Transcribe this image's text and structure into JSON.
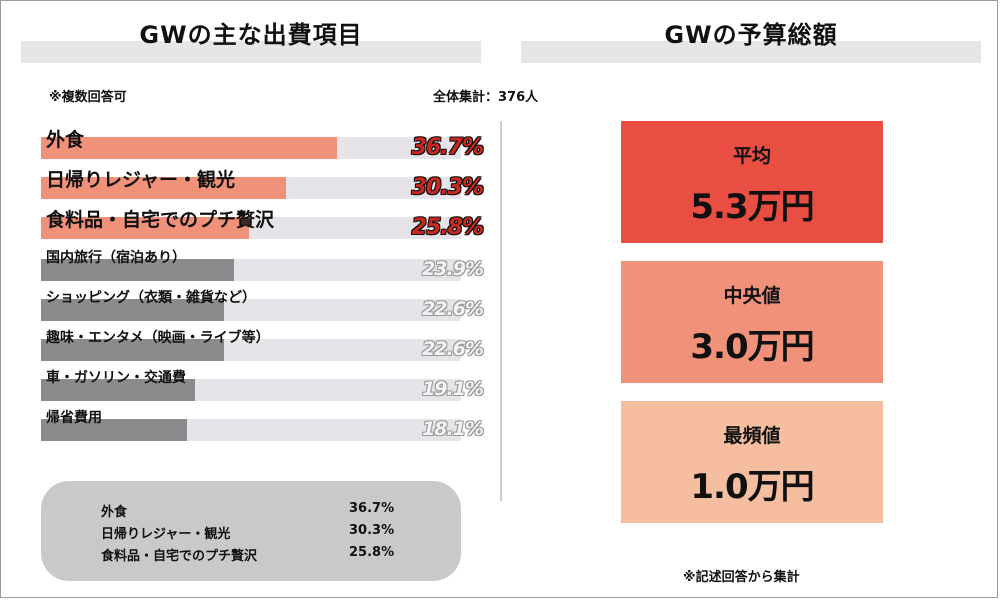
{
  "left_section": {
    "title": "GWの主な出費項目",
    "note": "※複数回答可",
    "total": "全体集計：376人"
  },
  "right_section": {
    "title": "GWの予算総額",
    "note": "※記述回答から集計"
  },
  "chart_data": {
    "type": "bar",
    "title": "GWの主な出費項目",
    "categories": [
      "外食",
      "日帰りレジャー・観光",
      "食料品・自宅でのプチ贅沢",
      "国内旅行（宿泊あり）",
      "ショッピング（衣類・雑貨など）",
      "趣味・エンタメ（映画・ライブ等）",
      "車・ガソリン・交通費",
      "帰省費用"
    ],
    "values": [
      36.7,
      30.3,
      25.8,
      23.9,
      22.6,
      22.6,
      19.1,
      18.1
    ],
    "value_labels": [
      "36.7%",
      "30.3%",
      "25.8%",
      "23.9%",
      "22.6%",
      "22.6%",
      "19.1%",
      "18.1%"
    ],
    "xlim": [
      0,
      52
    ],
    "highlight_count": 3,
    "colors": {
      "highlight": "#f0917a",
      "other": "#8d8a8d",
      "track": "#e6e4e8"
    }
  },
  "summary_table": [
    {
      "label": "外食",
      "value": "36.7%"
    },
    {
      "label": "日帰りレジャー・観光",
      "value": "30.3%"
    },
    {
      "label": "食料品・自宅でのプチ贅沢",
      "value": "25.8%"
    }
  ],
  "budget_stats": [
    {
      "label": "平均",
      "value": "5.3万円",
      "color": "#e84f42"
    },
    {
      "label": "中央値",
      "value": "3.0万円",
      "color": "#f0917a"
    },
    {
      "label": "最頻値",
      "value": "1.0万円",
      "color": "#f5bea0"
    }
  ]
}
